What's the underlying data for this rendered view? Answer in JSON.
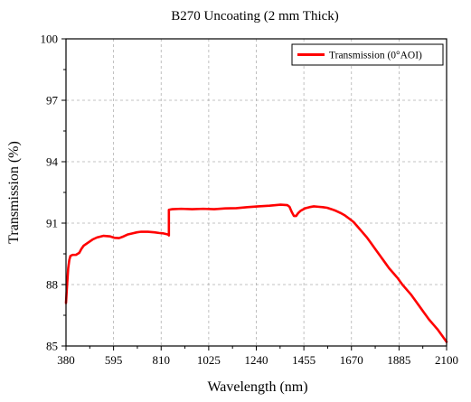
{
  "colors": {
    "series": "#ff0000",
    "grid": "#b0b0b0",
    "axis": "#000000",
    "background": "#ffffff"
  },
  "chart_data": {
    "type": "line",
    "title": "B270 Uncoating (2 mm  Thick)",
    "xlabel": "Wavelength (nm)",
    "ylabel": "Transmission (%)",
    "xlim": [
      380,
      2100
    ],
    "ylim": [
      85,
      100
    ],
    "xticks": [
      380,
      595,
      810,
      1025,
      1240,
      1455,
      1670,
      1885,
      2100
    ],
    "yticks": [
      85,
      88,
      91,
      94,
      97,
      100
    ],
    "grid": true,
    "grid_style": "dashed",
    "legend_position": "top-right",
    "series": [
      {
        "name": "Transmission (0°AOI)",
        "x": [
          380,
          385,
          390,
          395,
          400,
          410,
          425,
          440,
          450,
          460,
          480,
          500,
          520,
          550,
          580,
          600,
          620,
          640,
          660,
          680,
          700,
          720,
          750,
          780,
          800,
          820,
          840,
          845,
          845.01,
          860,
          900,
          950,
          1000,
          1050,
          1100,
          1150,
          1200,
          1250,
          1300,
          1350,
          1380,
          1390,
          1400,
          1410,
          1420,
          1430,
          1440,
          1460,
          1480,
          1500,
          1520,
          1540,
          1560,
          1580,
          1600,
          1620,
          1640,
          1660,
          1680,
          1700,
          1720,
          1740,
          1760,
          1780,
          1800,
          1820,
          1840,
          1860,
          1880,
          1900,
          1920,
          1940,
          1960,
          1980,
          2000,
          2020,
          2040,
          2060,
          2080,
          2100
        ],
        "y": [
          87.1,
          88.0,
          88.8,
          89.2,
          89.4,
          89.45,
          89.45,
          89.55,
          89.75,
          89.9,
          90.05,
          90.2,
          90.3,
          90.38,
          90.35,
          90.28,
          90.27,
          90.35,
          90.45,
          90.5,
          90.55,
          90.58,
          90.58,
          90.55,
          90.52,
          90.5,
          90.45,
          90.4,
          91.65,
          91.68,
          91.7,
          91.68,
          91.7,
          91.68,
          91.72,
          91.73,
          91.78,
          91.82,
          91.85,
          91.9,
          91.88,
          91.8,
          91.55,
          91.35,
          91.35,
          91.5,
          91.6,
          91.72,
          91.78,
          91.82,
          91.8,
          91.78,
          91.75,
          91.68,
          91.6,
          91.5,
          91.38,
          91.22,
          91.05,
          90.8,
          90.55,
          90.3,
          90.0,
          89.7,
          89.4,
          89.1,
          88.8,
          88.55,
          88.3,
          88.0,
          87.75,
          87.5,
          87.2,
          86.9,
          86.6,
          86.3,
          86.05,
          85.8,
          85.5,
          85.2
        ]
      }
    ]
  }
}
